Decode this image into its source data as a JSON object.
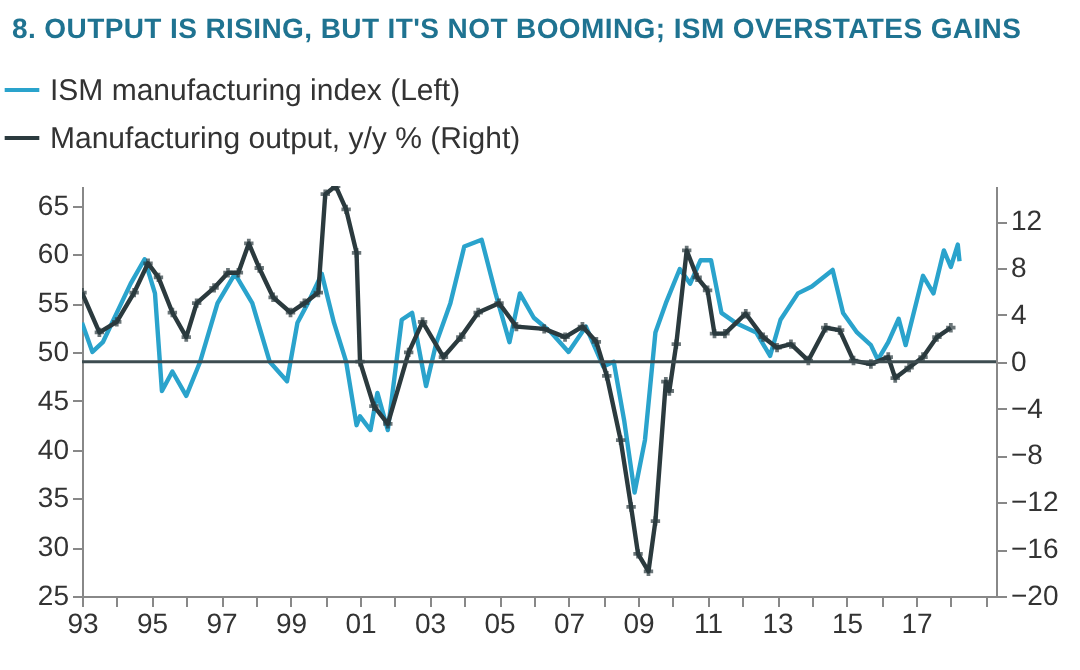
{
  "chart_data": {
    "type": "line",
    "title": "8.  OUTPUT IS RISING, BUT IT'S NOT BOOMING; ISM OVERSTATES GAINS",
    "series": [
      {
        "name": "ISM manufacturing index (Left)",
        "color": "#2aa3cc",
        "marker": "none",
        "x": [
          1993.0,
          1993.3,
          1993.6,
          1994.0,
          1994.4,
          1994.8,
          1995.1,
          1995.3,
          1995.6,
          1996.0,
          1996.4,
          1996.9,
          1997.4,
          1997.9,
          1998.4,
          1998.9,
          1999.2,
          1999.5,
          1999.9,
          2000.25,
          2000.6,
          2000.9,
          2001.0,
          2001.3,
          2001.5,
          2001.8,
          2002.2,
          2002.5,
          2002.9,
          2003.2,
          2003.6,
          2004.0,
          2004.5,
          2004.9,
          2005.3,
          2005.6,
          2006.0,
          2006.5,
          2007.0,
          2007.5,
          2008.0,
          2008.3,
          2008.6,
          2008.9,
          2009.2,
          2009.5,
          2009.8,
          2010.2,
          2010.5,
          2010.8,
          2011.1,
          2011.4,
          2011.8,
          2012.4,
          2012.8,
          2013.1,
          2013.6,
          2014.0,
          2014.6,
          2014.9,
          2015.3,
          2015.7,
          2015.9,
          2016.2,
          2016.5,
          2016.7,
          2017.2,
          2017.5,
          2017.8,
          2018.0,
          2018.2,
          2018.25
        ],
        "values": [
          53,
          50,
          51,
          54,
          57,
          59.5,
          56,
          46,
          48,
          45.5,
          49,
          55,
          58,
          55,
          49,
          47,
          53,
          55,
          58,
          53,
          49,
          42.5,
          43.4,
          42,
          45.8,
          42,
          53.3,
          54,
          46.5,
          51,
          55,
          60.8,
          61.5,
          56,
          51,
          56,
          53.5,
          52,
          50,
          52.6,
          48.5,
          49,
          43,
          35.6,
          41,
          52,
          55,
          58.5,
          57,
          59.4,
          59.4,
          54,
          53,
          52,
          49.6,
          53.3,
          56,
          56.7,
          58.4,
          54,
          52,
          50.7,
          49.2,
          51,
          53.4,
          50.7,
          57.8,
          56,
          60.4,
          58.7,
          61,
          59.3
        ]
      },
      {
        "name": "Manufacturing output, y/y % (Right)",
        "color": "#2b3a3e",
        "marker": "cross",
        "axis": "y2",
        "x": [
          1993.0,
          1993.5,
          1994.0,
          1994.5,
          1994.9,
          1995.2,
          1995.6,
          1996.0,
          1996.3,
          1996.8,
          1997.2,
          1997.5,
          1997.8,
          1998.1,
          1998.5,
          1999.0,
          1999.4,
          1999.8,
          2000.0,
          2000.3,
          2000.6,
          2000.9,
          2001.0,
          2001.4,
          2001.8,
          2002.4,
          2002.8,
          2003.4,
          2003.9,
          2004.4,
          2005.0,
          2005.5,
          2006.3,
          2006.9,
          2007.4,
          2007.8,
          2008.1,
          2008.5,
          2008.8,
          2009.0,
          2009.3,
          2009.5,
          2009.8,
          2009.9,
          2010.1,
          2010.4,
          2010.7,
          2011.0,
          2011.2,
          2011.5,
          2012.1,
          2012.6,
          2013.0,
          2013.4,
          2013.9,
          2014.4,
          2014.8,
          2015.2,
          2015.7,
          2016.2,
          2016.4,
          2016.8,
          2017.2,
          2017.6,
          2018.0
        ],
        "values": [
          5.9,
          2.5,
          3.4,
          5.9,
          8.4,
          7.2,
          4.2,
          2.1,
          5,
          6.3,
          7.6,
          7.6,
          10.1,
          8,
          5.5,
          4.2,
          5,
          5.9,
          14.3,
          15,
          13,
          9.3,
          0,
          -3.8,
          -5.3,
          0.8,
          3.4,
          0.4,
          2.1,
          4.2,
          5,
          3,
          2.8,
          2.1,
          3,
          1.7,
          -1.2,
          -6.7,
          -12.4,
          -16.4,
          -17.9,
          -13.6,
          -1.7,
          -2.5,
          1.5,
          9.5,
          7.2,
          6.1,
          2.4,
          2.4,
          4.1,
          2.1,
          1.2,
          1.5,
          0.1,
          2.9,
          2.7,
          0.1,
          -0.2,
          0.4,
          -1.4,
          -0.5,
          0.4,
          2.1,
          2.9
        ]
      }
    ],
    "xlim": [
      1993,
      2019.3
    ],
    "xticks": [
      {
        "value": 1993,
        "label": "93"
      },
      {
        "value": 1994,
        "label": null
      },
      {
        "value": 1995,
        "label": "95"
      },
      {
        "value": 1996,
        "label": null
      },
      {
        "value": 1997,
        "label": "97"
      },
      {
        "value": 1998,
        "label": null
      },
      {
        "value": 1999,
        "label": "99"
      },
      {
        "value": 2000,
        "label": null
      },
      {
        "value": 2001,
        "label": "01"
      },
      {
        "value": 2002,
        "label": null
      },
      {
        "value": 2003,
        "label": "03"
      },
      {
        "value": 2004,
        "label": null
      },
      {
        "value": 2005,
        "label": "05"
      },
      {
        "value": 2006,
        "label": null
      },
      {
        "value": 2007,
        "label": "07"
      },
      {
        "value": 2008,
        "label": null
      },
      {
        "value": 2009,
        "label": "09"
      },
      {
        "value": 2010,
        "label": null
      },
      {
        "value": 2011,
        "label": "11"
      },
      {
        "value": 2012,
        "label": null
      },
      {
        "value": 2013,
        "label": "13"
      },
      {
        "value": 2014,
        "label": null
      },
      {
        "value": 2015,
        "label": "15"
      },
      {
        "value": 2016,
        "label": null
      },
      {
        "value": 2017,
        "label": "17"
      },
      {
        "value": 2018,
        "label": null
      },
      {
        "value": 2019,
        "label": null
      }
    ],
    "ylim": [
      25,
      67
    ],
    "yticks": [
      25,
      30,
      35,
      40,
      45,
      50,
      55,
      60,
      65
    ],
    "y2lim": [
      -20,
      15
    ],
    "y2ticks": [
      -20,
      -16,
      -12,
      -8,
      -4,
      0,
      4,
      8,
      12
    ],
    "ref_lines": [
      {
        "axis": "y2",
        "value": 0,
        "color": "#3d4c50"
      }
    ],
    "legend": "top left",
    "grid": false
  }
}
